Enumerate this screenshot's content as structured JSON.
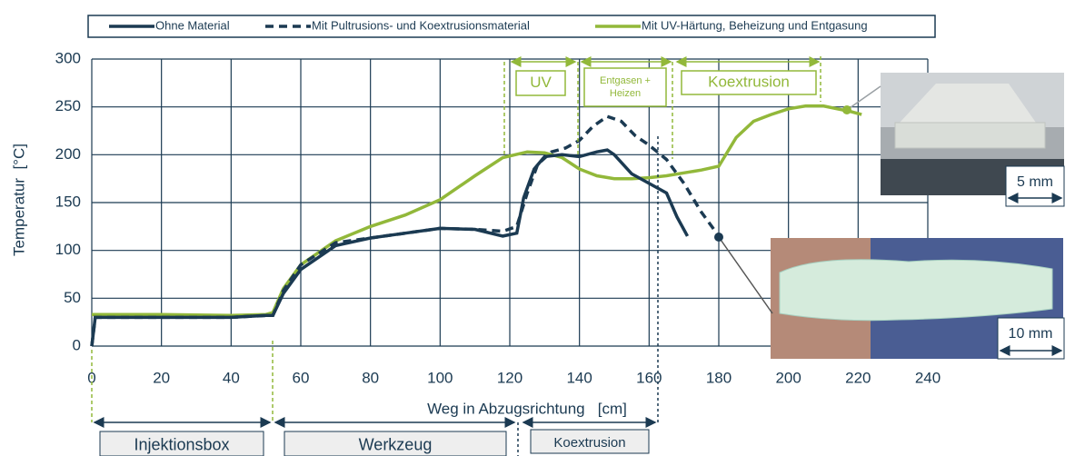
{
  "chart_data": {
    "type": "line",
    "x_label": "Weg in Abzugsrichtung   [cm]",
    "y_label": "Temperatur  [°C]",
    "xlim": [
      0,
      240
    ],
    "xticks": [
      0,
      20,
      40,
      60,
      80,
      100,
      120,
      140,
      160,
      180,
      200,
      220,
      240
    ],
    "ylim": [
      0,
      300
    ],
    "yticks": [
      0,
      50,
      100,
      150,
      200,
      250,
      300
    ],
    "grid": true,
    "series": [
      {
        "name": "Ohne Material",
        "color": "#1b3a52",
        "style": "solid",
        "x": [
          0,
          1,
          5,
          20,
          40,
          50,
          52,
          55,
          60,
          70,
          80,
          90,
          100,
          110,
          118,
          122,
          124,
          127,
          130,
          135,
          140,
          145,
          148,
          150,
          155,
          160,
          165,
          168,
          171
        ],
        "values": [
          0,
          30,
          30,
          30,
          30,
          32,
          32,
          55,
          80,
          105,
          113,
          118,
          123,
          122,
          115,
          118,
          155,
          185,
          198,
          200,
          198,
          203,
          205,
          200,
          180,
          170,
          160,
          135,
          115
        ]
      },
      {
        "name": "Mit Pultrusions- und Koextrusionsmaterial",
        "color": "#1b3a52",
        "style": "dashed",
        "x": [
          0,
          1,
          5,
          20,
          40,
          50,
          52,
          55,
          60,
          70,
          80,
          90,
          100,
          110,
          118,
          122,
          125,
          128,
          132,
          136,
          140,
          144,
          148,
          152,
          156,
          160,
          165,
          170,
          175,
          180
        ],
        "values": [
          0,
          30,
          30,
          30,
          30,
          32,
          32,
          58,
          85,
          108,
          113,
          118,
          123,
          122,
          120,
          125,
          160,
          190,
          203,
          207,
          215,
          230,
          240,
          235,
          220,
          210,
          195,
          170,
          140,
          115
        ]
      },
      {
        "name": "Mit UV-Härtung, Beheizung und Entgasung",
        "color": "#92b83a",
        "style": "solid",
        "x": [
          0,
          5,
          20,
          40,
          50,
          52,
          55,
          60,
          70,
          80,
          90,
          100,
          110,
          118,
          125,
          130,
          135,
          140,
          145,
          150,
          155,
          160,
          165,
          170,
          175,
          180,
          185,
          190,
          195,
          200,
          205,
          210,
          214,
          218,
          221
        ],
        "values": [
          33,
          33,
          33,
          32,
          33,
          35,
          60,
          85,
          110,
          125,
          137,
          153,
          178,
          197,
          203,
          202,
          197,
          185,
          178,
          175,
          175,
          176,
          178,
          181,
          184,
          188,
          218,
          235,
          242,
          248,
          251,
          251,
          248,
          245,
          242
        ]
      }
    ],
    "top_zones": [
      [
        "UV"
      ],
      [
        "Entgasen +",
        "Heizen"
      ],
      [
        "Koextrusion"
      ]
    ],
    "bottom_zones": [
      "Injektionsbox",
      "Werkzeug",
      "Koextrusion"
    ],
    "scale_bars": [
      "5 mm",
      "10 mm"
    ]
  }
}
